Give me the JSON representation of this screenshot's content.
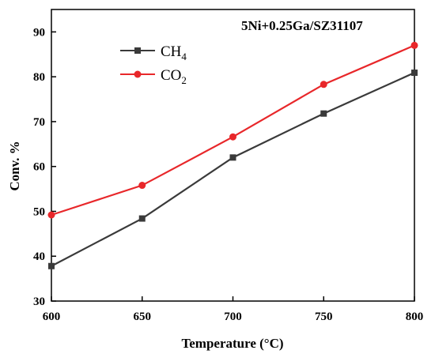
{
  "chart_data": {
    "type": "line",
    "title": "",
    "annotation": "5Ni+0.25Ga/SZ31107",
    "xlabel": "Temperature (°C)",
    "ylabel": "Conv. %",
    "xlim": [
      600,
      800
    ],
    "ylim": [
      30,
      95
    ],
    "x_ticks": [
      600,
      650,
      700,
      750,
      800
    ],
    "y_ticks": [
      30,
      40,
      50,
      60,
      70,
      80,
      90
    ],
    "grid": false,
    "legend_position": "top-left",
    "x": [
      600,
      650,
      700,
      750,
      800
    ],
    "series": [
      {
        "name": "CH4",
        "legend_main": "CH",
        "legend_sub": "4",
        "color": "#3a3a3a",
        "marker": "square",
        "values": [
          37.8,
          48.4,
          62.0,
          71.8,
          80.9
        ]
      },
      {
        "name": "CO2",
        "legend_main": "CO",
        "legend_sub": "2",
        "color": "#e8272a",
        "marker": "circle",
        "values": [
          49.2,
          55.8,
          66.6,
          78.3,
          87.0
        ]
      }
    ]
  }
}
